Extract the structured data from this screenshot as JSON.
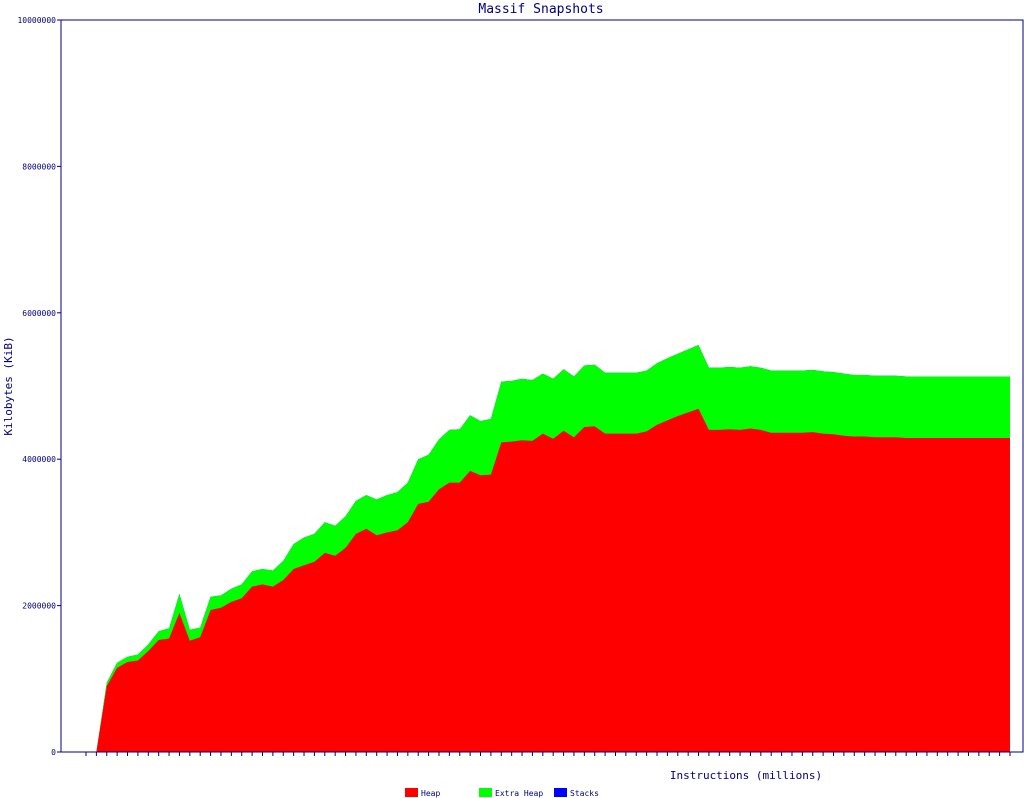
{
  "chart_data": {
    "type": "area",
    "title": "Massif Snapshots",
    "xlabel": "Instructions (millions)",
    "ylabel": "Kilobytes (KiB)",
    "ylim": [
      0,
      10000000
    ],
    "yticks": [
      "0",
      "2000000",
      "4000000",
      "6000000",
      "8000000",
      "10000000"
    ],
    "x": [
      1,
      2,
      3,
      4,
      5,
      6,
      7,
      8,
      9,
      10,
      11,
      12,
      13,
      14,
      15,
      16,
      17,
      18,
      19,
      20,
      21,
      22,
      23,
      24,
      25,
      26,
      27,
      28,
      29,
      30,
      31,
      32,
      33,
      34,
      35,
      36,
      37,
      38,
      39,
      40,
      41,
      42,
      43,
      44,
      45,
      46,
      47,
      48,
      49,
      50,
      51,
      52,
      53,
      54,
      55,
      56,
      57,
      58,
      59,
      60,
      61,
      62,
      63,
      64,
      65,
      66,
      67,
      68,
      69,
      70,
      71,
      72,
      73,
      74,
      75,
      76,
      77,
      78,
      79,
      80,
      81,
      82,
      83,
      84,
      85,
      86,
      87,
      88,
      89,
      90
    ],
    "series": [
      {
        "name": "Heap",
        "color": "#ff0000",
        "values": [
          0,
          0,
          900000,
          1150000,
          1230000,
          1250000,
          1380000,
          1530000,
          1550000,
          1900000,
          1520000,
          1570000,
          1940000,
          1970000,
          2050000,
          2100000,
          2260000,
          2290000,
          2260000,
          2350000,
          2500000,
          2550000,
          2600000,
          2720000,
          2680000,
          2790000,
          2980000,
          3050000,
          2960000,
          3000000,
          3030000,
          3140000,
          3390000,
          3420000,
          3590000,
          3680000,
          3680000,
          3840000,
          3780000,
          3790000,
          4230000,
          4240000,
          4260000,
          4250000,
          4350000,
          4280000,
          4390000,
          4300000,
          4440000,
          4450000,
          4350000,
          4350000,
          4350000,
          4350000,
          4380000,
          4470000,
          4530000,
          4590000,
          4640000,
          4690000,
          4400000,
          4400000,
          4410000,
          4400000,
          4420000,
          4400000,
          4360000,
          4360000,
          4360000,
          4360000,
          4370000,
          4350000,
          4340000,
          4320000,
          4310000,
          4310000,
          4300000,
          4300000,
          4300000,
          4290000,
          4290000,
          4290000,
          4290000,
          4290000,
          4290000,
          4290000,
          4290000,
          4290000,
          4290000,
          4290000
        ]
      },
      {
        "name": "Extra Heap",
        "color": "#00ff00",
        "values": [
          0,
          0,
          50000,
          70000,
          70000,
          80000,
          90000,
          120000,
          140000,
          260000,
          150000,
          130000,
          180000,
          170000,
          180000,
          190000,
          210000,
          210000,
          220000,
          260000,
          340000,
          380000,
          380000,
          420000,
          410000,
          430000,
          450000,
          460000,
          490000,
          510000,
          520000,
          540000,
          610000,
          640000,
          680000,
          720000,
          730000,
          760000,
          740000,
          760000,
          830000,
          830000,
          840000,
          830000,
          820000,
          820000,
          840000,
          830000,
          840000,
          840000,
          830000,
          830000,
          830000,
          830000,
          830000,
          840000,
          850000,
          850000,
          860000,
          870000,
          850000,
          850000,
          850000,
          850000,
          850000,
          850000,
          850000,
          850000,
          850000,
          850000,
          850000,
          850000,
          850000,
          850000,
          840000,
          840000,
          840000,
          840000,
          840000,
          840000,
          840000,
          840000,
          840000,
          840000,
          840000,
          840000,
          840000,
          840000,
          840000,
          840000
        ]
      },
      {
        "name": "Stacks",
        "color": "#0000ff",
        "values": [
          0,
          0,
          0,
          0,
          0,
          0,
          0,
          0,
          0,
          0,
          0,
          0,
          0,
          0,
          0,
          0,
          0,
          0,
          0,
          0,
          0,
          0,
          0,
          0,
          0,
          0,
          0,
          0,
          0,
          0,
          0,
          0,
          0,
          0,
          0,
          0,
          0,
          0,
          0,
          0,
          0,
          0,
          0,
          0,
          0,
          0,
          0,
          0,
          0,
          0,
          0,
          0,
          0,
          0,
          0,
          0,
          0,
          0,
          0,
          0,
          0,
          0,
          0,
          0,
          0,
          0,
          0,
          0,
          0,
          0,
          0,
          0,
          0,
          0,
          0,
          0,
          0,
          0,
          0,
          0,
          0,
          0,
          0,
          0,
          0,
          0,
          0,
          0,
          0,
          0
        ]
      }
    ],
    "legend": [
      "Heap",
      "Extra Heap",
      "Stacks"
    ],
    "legend_position": "bottom",
    "grid": false
  }
}
